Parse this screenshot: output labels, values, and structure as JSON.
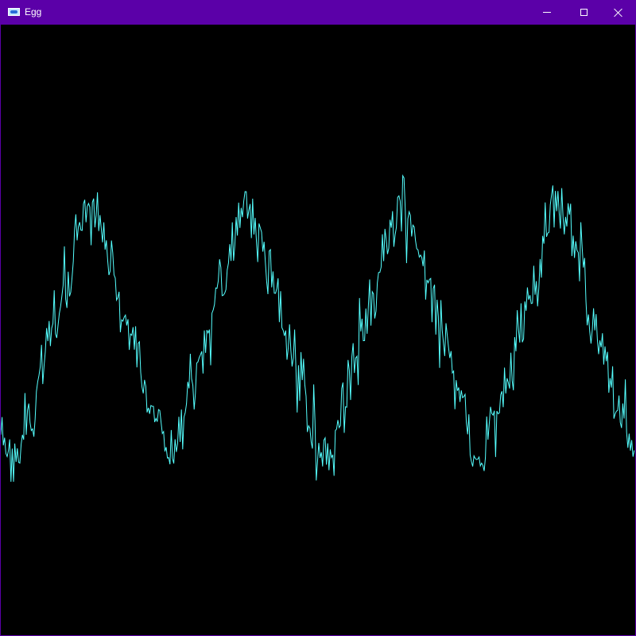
{
  "window": {
    "title": "Egg",
    "app_icon": "app-window-icon",
    "controls": {
      "minimize_icon": "minimize-icon",
      "maximize_icon": "maximize-icon",
      "close_icon": "close-icon"
    },
    "colors": {
      "titlebar": "#5b00a8",
      "canvas_background": "#000000",
      "wave_stroke": "#55ffff"
    }
  }
}
